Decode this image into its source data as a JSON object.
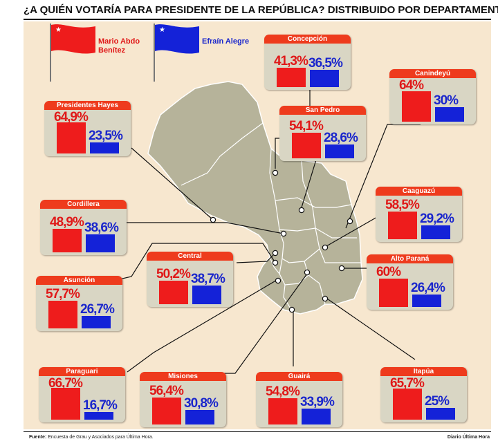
{
  "title": "¿A QUIÉN VOTARÍA PARA PRESIDENTE DE LA REPÚBLICA? DISTRIBUIDO POR DEPARTAMENTO",
  "legend": {
    "candidate_a": "Mario Abdo Benítez",
    "candidate_b": "Efraín Alegre"
  },
  "colors": {
    "candidate_a": "#ee1c1c",
    "candidate_b": "#1422d8",
    "header": "#ee3b1d",
    "background": "#f7e7cf",
    "map": "#b6b39a"
  },
  "chart_data": {
    "type": "bar",
    "title": "¿A QUIÉN VOTARÍA PARA PRESIDENTE DE LA REPÚBLICA? DISTRIBUIDO POR DEPARTAMENTO",
    "series": [
      {
        "name": "Mario Abdo Benítez",
        "color": "#ee1c1c"
      },
      {
        "name": "Efraín Alegre",
        "color": "#1422d8"
      }
    ],
    "departments": [
      {
        "name": "Concepción",
        "a_label": "41,3%",
        "b_label": "36,5%",
        "a": 41.3,
        "b": 36.5
      },
      {
        "name": "Canindeyú",
        "a_label": "64%",
        "b_label": "30%",
        "a": 64,
        "b": 30
      },
      {
        "name": "Presidentes Hayes",
        "a_label": "64,9%",
        "b_label": "23,5%",
        "a": 64.9,
        "b": 23.5
      },
      {
        "name": "San Pedro",
        "a_label": "54,1%",
        "b_label": "28,6%",
        "a": 54.1,
        "b": 28.6
      },
      {
        "name": "Caaguazú",
        "a_label": "58,5%",
        "b_label": "29,2%",
        "a": 58.5,
        "b": 29.2
      },
      {
        "name": "Cordillera",
        "a_label": "48,9%",
        "b_label": "38,6%",
        "a": 48.9,
        "b": 38.6
      },
      {
        "name": "Alto Paraná",
        "a_label": "60%",
        "b_label": "26,4%",
        "a": 60,
        "b": 26.4
      },
      {
        "name": "Central",
        "a_label": "50,2%",
        "b_label": "38,7%",
        "a": 50.2,
        "b": 38.7
      },
      {
        "name": "Asunción",
        "a_label": "57,7%",
        "b_label": "26,7%",
        "a": 57.7,
        "b": 26.7
      },
      {
        "name": "Paraguari",
        "a_label": "66,7%",
        "b_label": "16,7%",
        "a": 66.7,
        "b": 16.7
      },
      {
        "name": "Misiones",
        "a_label": "56,4%",
        "b_label": "30,8%",
        "a": 56.4,
        "b": 30.8
      },
      {
        "name": "Guairá",
        "a_label": "54,8%",
        "b_label": "33,9%",
        "a": 54.8,
        "b": 33.9
      },
      {
        "name": "Itapúa",
        "a_label": "65,7%",
        "b_label": "25%",
        "a": 65.7,
        "b": 25
      }
    ]
  },
  "footer": {
    "source_label": "Fuente:",
    "source_text": "Encuesta de Grau y Asociados para Última Hora.",
    "credit": "Diario Última Hora"
  }
}
